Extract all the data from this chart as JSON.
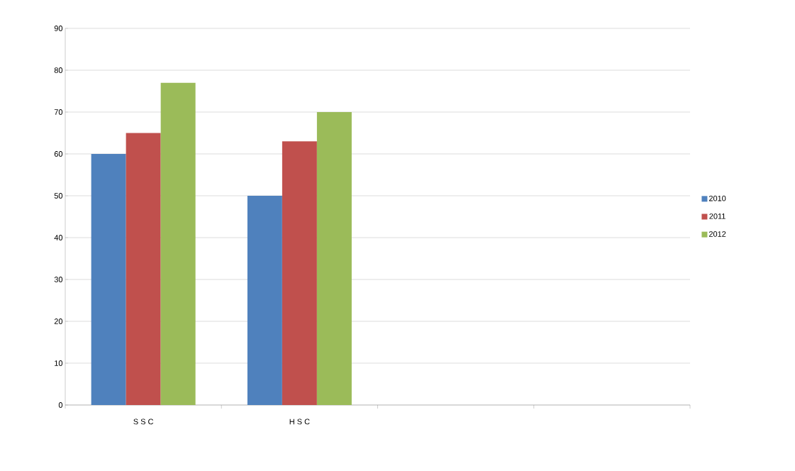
{
  "chart_data": {
    "type": "bar",
    "categories": [
      "S S C",
      "H S C",
      null,
      null
    ],
    "series": [
      {
        "name": "2010",
        "color": "#4f81bd",
        "values": [
          60,
          50,
          null,
          null
        ]
      },
      {
        "name": "2011",
        "color": "#c0504d",
        "values": [
          65,
          63,
          null,
          null
        ]
      },
      {
        "name": "2012",
        "color": "#9bbb59",
        "values": [
          77,
          70,
          null,
          null
        ]
      }
    ],
    "ylim": [
      0,
      90
    ],
    "yticks": [
      0,
      10,
      20,
      30,
      40,
      50,
      60,
      70,
      80,
      90
    ],
    "grid": "y",
    "legend": "right"
  }
}
